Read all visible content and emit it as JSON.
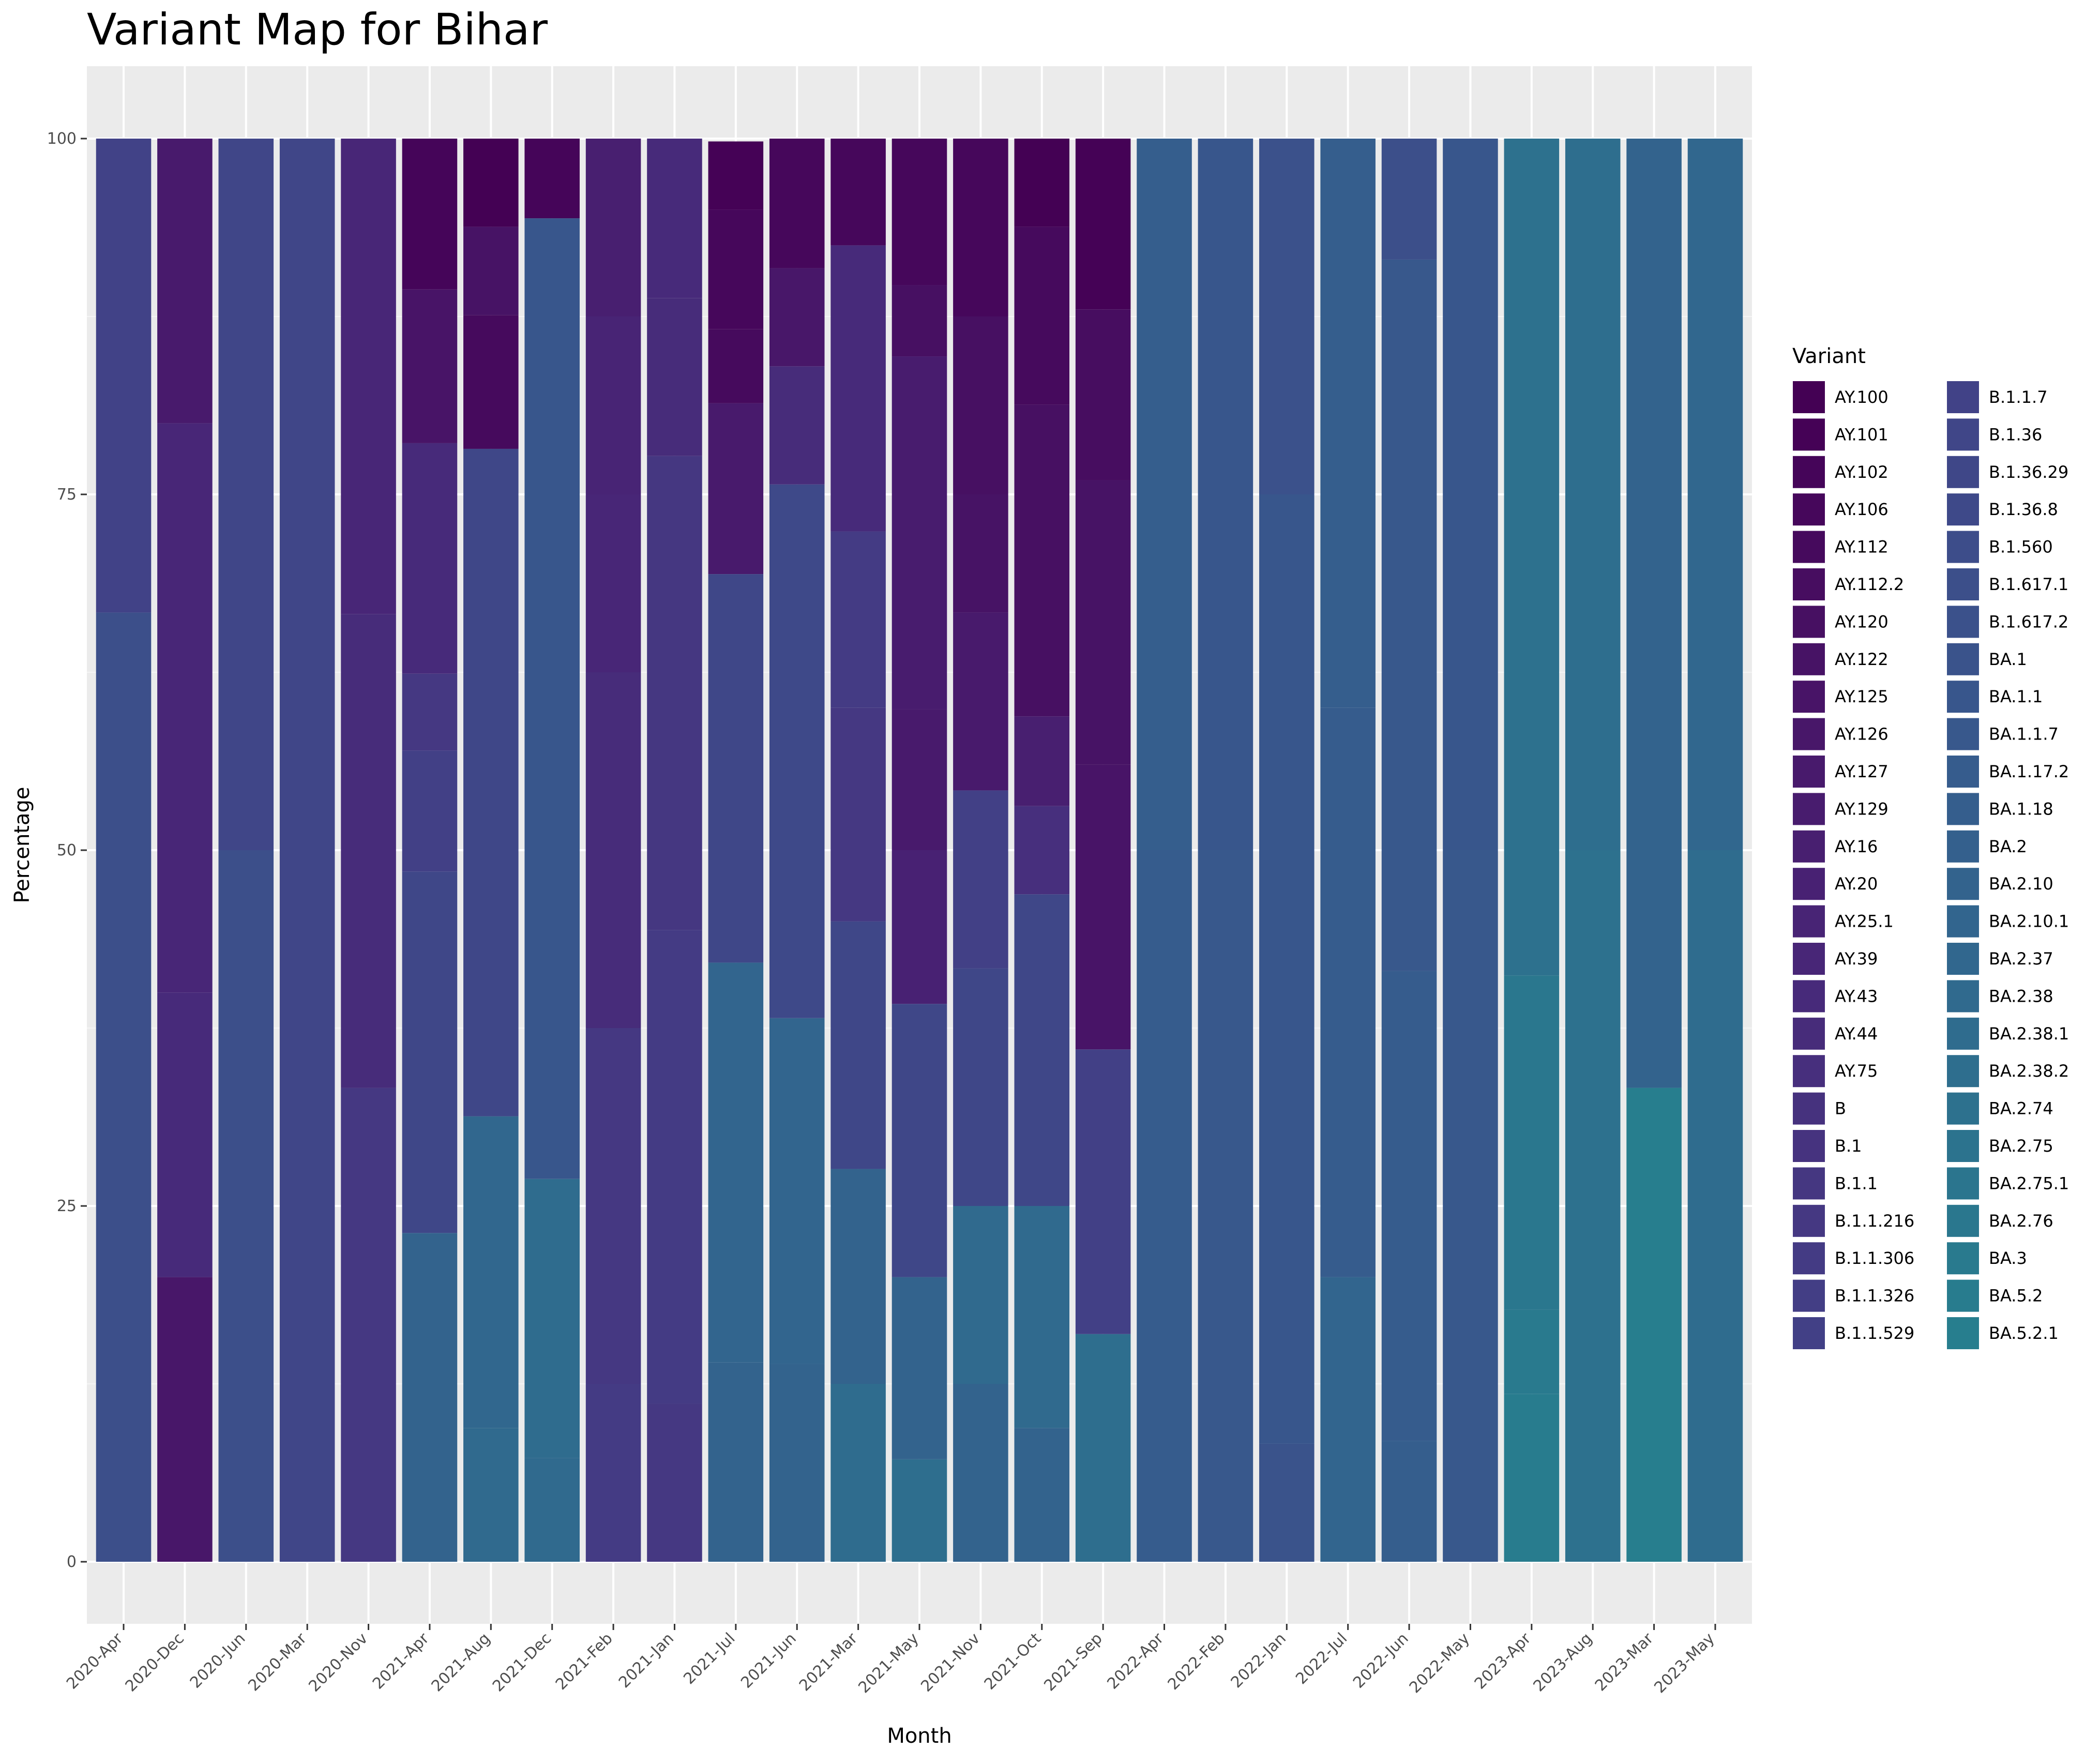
{
  "chart_data": {
    "type": "bar",
    "stacked": true,
    "title": "Variant Map for Bihar",
    "xlabel": "Month",
    "ylabel": "Percentage",
    "ylim": [
      -5,
      105
    ],
    "yticks": [
      0,
      25,
      50,
      75,
      100
    ],
    "grid": true,
    "legend_title": "Variant",
    "legend_position": "right",
    "categories": [
      "2020-Apr",
      "2020-Dec",
      "2020-Jun",
      "2020-Mar",
      "2020-Nov",
      "2021-Apr",
      "2021-Aug",
      "2021-Dec",
      "2021-Feb",
      "2021-Jan",
      "2021-Jul",
      "2021-Jun",
      "2021-Mar",
      "2021-May",
      "2021-Nov",
      "2021-Oct",
      "2021-Sep",
      "2022-Apr",
      "2022-Feb",
      "2022-Jan",
      "2022-Jul",
      "2022-Jun",
      "2022-May",
      "2023-Apr",
      "2023-Aug",
      "2023-Mar",
      "2023-May"
    ],
    "variants": [
      "AY.100",
      "AY.101",
      "AY.102",
      "AY.106",
      "AY.112",
      "AY.112.2",
      "AY.120",
      "AY.122",
      "AY.125",
      "AY.126",
      "AY.127",
      "AY.129",
      "AY.16",
      "AY.20",
      "AY.25.1",
      "AY.39",
      "AY.43",
      "AY.44",
      "AY.75",
      "B",
      "B.1",
      "B.1.1",
      "B.1.1.216",
      "B.1.1.306",
      "B.1.1.326",
      "B.1.1.529",
      "B.1.1.7",
      "B.1.36",
      "B.1.36.29",
      "B.1.36.8",
      "B.1.560",
      "B.1.617.1",
      "B.1.617.2",
      "BA.1",
      "BA.1.1",
      "BA.1.1.7",
      "BA.1.17.2",
      "BA.1.18",
      "BA.2",
      "BA.2.10",
      "BA.2.10.1",
      "BA.2.37",
      "BA.2.38",
      "BA.2.38.1",
      "BA.2.38.2",
      "BA.2.74",
      "BA.2.75",
      "BA.2.75.1",
      "BA.2.76",
      "BA.3",
      "BA.5.2",
      "BA.5.2.1"
    ],
    "colors": [
      "#440154",
      "#450256",
      "#450559",
      "#46075B",
      "#460A5D",
      "#470D60",
      "#471062",
      "#471365",
      "#481467",
      "#481769",
      "#481A6C",
      "#481C6E",
      "#481F70",
      "#482173",
      "#482475",
      "#482677",
      "#472A7A",
      "#472C7A",
      "#472F7D",
      "#46327E",
      "#46337F",
      "#453781",
      "#453882",
      "#443B84",
      "#433E85",
      "#424086",
      "#414287",
      "#404688",
      "#3F4788",
      "#3E4989",
      "#3D4D8A",
      "#3C4F8A",
      "#3B518B",
      "#3A538B",
      "#38568C",
      "#38588C",
      "#365C8D",
      "#355E8D",
      "#34608D",
      "#33638D",
      "#32658E",
      "#31678E",
      "#306A8E",
      "#2F6C8E",
      "#2E6E8E",
      "#2D718E",
      "#2C738E",
      "#2B758E",
      "#2A778E",
      "#297A8E",
      "#287C8E",
      "#277E8E"
    ],
    "series_by_month": [
      {
        "month": "2020-Apr",
        "stacks": [
          {
            "variant": "B.1.617.1",
            "value": 66.7
          },
          {
            "variant": "B.1.1.7",
            "value": 33.3
          }
        ]
      },
      {
        "month": "2020-Dec",
        "stacks": [
          {
            "variant": "AY.126",
            "value": 20
          },
          {
            "variant": "AY.43",
            "value": 20
          },
          {
            "variant": "AY.39",
            "value": 40
          },
          {
            "variant": "AY.127",
            "value": 20
          }
        ]
      },
      {
        "month": "2020-Jun",
        "stacks": [
          {
            "variant": "B.1.617.1",
            "value": 50
          },
          {
            "variant": "B.1.36",
            "value": 50
          }
        ]
      },
      {
        "month": "2020-Mar",
        "stacks": [
          {
            "variant": "B.1.36",
            "value": 100
          }
        ]
      },
      {
        "month": "2020-Nov",
        "stacks": [
          {
            "variant": "B.1.1.216",
            "value": 33.3
          },
          {
            "variant": "AY.44",
            "value": 33.3
          },
          {
            "variant": "AY.39",
            "value": 33.4
          }
        ]
      },
      {
        "month": "2021-Apr",
        "stacks": [
          {
            "variant": "BA.2.10",
            "value": 23.1
          },
          {
            "variant": "B.1.36.29",
            "value": 25.4
          },
          {
            "variant": "B.1.1.529",
            "value": 8.5
          },
          {
            "variant": "B.1.1.216",
            "value": 5.4
          },
          {
            "variant": "AY.43",
            "value": 16.2
          },
          {
            "variant": "AY.125",
            "value": 10.8
          },
          {
            "variant": "AY.102",
            "value": 10.6
          }
        ]
      },
      {
        "month": "2021-Aug",
        "stacks": [
          {
            "variant": "BA.2.38",
            "value": 9.4
          },
          {
            "variant": "BA.2.37",
            "value": 21.9
          },
          {
            "variant": "B.1.36.29",
            "value": 46.9
          },
          {
            "variant": "AY.112",
            "value": 9.4
          },
          {
            "variant": "AY.122",
            "value": 6.2
          },
          {
            "variant": "AY.100",
            "value": 6.2
          }
        ]
      },
      {
        "month": "2021-Dec",
        "stacks": [
          {
            "variant": "BA.2.38",
            "value": 7.3
          },
          {
            "variant": "BA.2.38.1",
            "value": 19.6
          },
          {
            "variant": "BA.1.1",
            "value": 67.5
          },
          {
            "variant": "AY.102",
            "value": 5.6
          }
        ]
      },
      {
        "month": "2021-Feb",
        "stacks": [
          {
            "variant": "B.1.1.306",
            "value": 12.5
          },
          {
            "variant": "B.1.1.216",
            "value": 25
          },
          {
            "variant": "AY.44",
            "value": 25
          },
          {
            "variant": "AY.39",
            "value": 12.5
          },
          {
            "variant": "AY.25.1",
            "value": 12.5
          },
          {
            "variant": "AY.16",
            "value": 12.5
          }
        ]
      },
      {
        "month": "2021-Jan",
        "stacks": [
          {
            "variant": "B.1.1.216",
            "value": 11.1
          },
          {
            "variant": "B.1.1.306",
            "value": 33.3
          },
          {
            "variant": "B.1.1",
            "value": 33.3
          },
          {
            "variant": "AY.44",
            "value": 11.1
          },
          {
            "variant": "AY.43",
            "value": 11.2
          }
        ]
      },
      {
        "month": "2021-Jul",
        "stacks": [
          {
            "variant": "BA.2.10",
            "value": 14
          },
          {
            "variant": "BA.2.10.1",
            "value": 28.1
          },
          {
            "variant": "B.1.36.29",
            "value": 27.3
          },
          {
            "variant": "AY.127",
            "value": 12
          },
          {
            "variant": "AY.112",
            "value": 5.2
          },
          {
            "variant": "AY.106",
            "value": 8.4
          },
          {
            "variant": "AY.101",
            "value": 4.8
          }
        ]
      },
      {
        "month": "2021-Jun",
        "stacks": [
          {
            "variant": "BA.2.10",
            "value": 13.9
          },
          {
            "variant": "BA.2.10.1",
            "value": 24.3
          },
          {
            "variant": "B.1.36.8",
            "value": 37.5
          },
          {
            "variant": "AY.44",
            "value": 8.3
          },
          {
            "variant": "AY.126",
            "value": 6.9
          },
          {
            "variant": "AY.106",
            "value": 9.1
          }
        ]
      },
      {
        "month": "2021-Mar",
        "stacks": [
          {
            "variant": "BA.2.38.1",
            "value": 12.5
          },
          {
            "variant": "BA.2.10",
            "value": 15.1
          },
          {
            "variant": "B.1.36.29",
            "value": 17.4
          },
          {
            "variant": "B.1.1.216",
            "value": 15
          },
          {
            "variant": "B.1.1.306",
            "value": 12.4
          },
          {
            "variant": "AY.43",
            "value": 20.1
          },
          {
            "variant": "AY.106",
            "value": 7.5
          }
        ]
      },
      {
        "month": "2021-May",
        "stacks": [
          {
            "variant": "BA.2.38.2",
            "value": 7.2
          },
          {
            "variant": "BA.2.10",
            "value": 12.8
          },
          {
            "variant": "B.1.36.29",
            "value": 19.2
          },
          {
            "variant": "AY.20",
            "value": 10.8
          },
          {
            "variant": "AY.127",
            "value": 9.9
          },
          {
            "variant": "AY.129",
            "value": 24.8
          },
          {
            "variant": "AY.120",
            "value": 5
          },
          {
            "variant": "AY.106",
            "value": 10.3
          }
        ]
      },
      {
        "month": "2021-Nov",
        "stacks": [
          {
            "variant": "BA.2.10",
            "value": 12.5
          },
          {
            "variant": "BA.2.38",
            "value": 12.5
          },
          {
            "variant": "B.1.36.29",
            "value": 16.7
          },
          {
            "variant": "B.1.1.529",
            "value": 12.5
          },
          {
            "variant": "AY.127",
            "value": 12.5
          },
          {
            "variant": "AY.122",
            "value": 8.3
          },
          {
            "variant": "AY.120",
            "value": 12.5
          },
          {
            "variant": "AY.106",
            "value": 12.5
          }
        ]
      },
      {
        "month": "2021-Oct",
        "stacks": [
          {
            "variant": "BA.2.10",
            "value": 9.4
          },
          {
            "variant": "BA.2.38",
            "value": 15.6
          },
          {
            "variant": "B.1.36.29",
            "value": 21.9
          },
          {
            "variant": "AY.75",
            "value": 6.2
          },
          {
            "variant": "AY.16",
            "value": 6.3
          },
          {
            "variant": "AY.120",
            "value": 21.9
          },
          {
            "variant": "AY.112",
            "value": 12.5
          },
          {
            "variant": "AY.100",
            "value": 6.2
          }
        ]
      },
      {
        "month": "2021-Sep",
        "stacks": [
          {
            "variant": "BA.2.38.2",
            "value": 16
          },
          {
            "variant": "B.1.1.529",
            "value": 20
          },
          {
            "variant": "AY.125",
            "value": 20
          },
          {
            "variant": "AY.122",
            "value": 20
          },
          {
            "variant": "AY.112.2",
            "value": 12
          },
          {
            "variant": "AY.101",
            "value": 12
          }
        ]
      },
      {
        "month": "2022-Apr",
        "stacks": [
          {
            "variant": "BA.1.17.2",
            "value": 50
          },
          {
            "variant": "BA.1.18",
            "value": 50
          }
        ]
      },
      {
        "month": "2022-Feb",
        "stacks": [
          {
            "variant": "BA.1.1.7",
            "value": 50
          },
          {
            "variant": "BA.1.1",
            "value": 50
          }
        ]
      },
      {
        "month": "2022-Jan",
        "stacks": [
          {
            "variant": "BA.1",
            "value": 8.3
          },
          {
            "variant": "BA.1.1",
            "value": 66.7
          },
          {
            "variant": "B.1.617.2",
            "value": 25
          }
        ]
      },
      {
        "month": "2022-Jul",
        "stacks": [
          {
            "variant": "BA.2.10.1",
            "value": 20
          },
          {
            "variant": "BA.1.17.2",
            "value": 40
          },
          {
            "variant": "BA.1.18",
            "value": 40
          }
        ]
      },
      {
        "month": "2022-Jun",
        "stacks": [
          {
            "variant": "BA.1.18",
            "value": 8.5
          },
          {
            "variant": "BA.1.17.2",
            "value": 33
          },
          {
            "variant": "BA.1.1.7",
            "value": 50
          },
          {
            "variant": "B.1.617.1",
            "value": 8.5
          }
        ]
      },
      {
        "month": "2022-May",
        "stacks": [
          {
            "variant": "BA.1.1.7",
            "value": 50
          },
          {
            "variant": "BA.1.1",
            "value": 50
          }
        ]
      },
      {
        "month": "2023-Apr",
        "stacks": [
          {
            "variant": "BA.5.2",
            "value": 11.8
          },
          {
            "variant": "BA.3",
            "value": 5.9
          },
          {
            "variant": "BA.2.76",
            "value": 23.5
          },
          {
            "variant": "BA.2.74",
            "value": 58.8
          }
        ]
      },
      {
        "month": "2023-Aug",
        "stacks": [
          {
            "variant": "BA.2.74",
            "value": 50
          },
          {
            "variant": "BA.2.38.2",
            "value": 50
          }
        ]
      },
      {
        "month": "2023-Mar",
        "stacks": [
          {
            "variant": "BA.5.2.1",
            "value": 33.3
          },
          {
            "variant": "BA.2.10",
            "value": 66.7
          }
        ]
      },
      {
        "month": "2023-May",
        "stacks": [
          {
            "variant": "BA.2.38.1",
            "value": 50
          },
          {
            "variant": "BA.2.37",
            "value": 50
          }
        ]
      }
    ]
  }
}
